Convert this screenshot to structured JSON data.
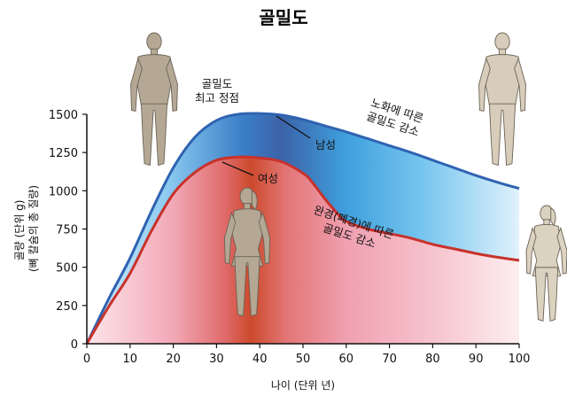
{
  "chart_data": {
    "type": "area",
    "title": "골밀도",
    "xlabel": "나이 (단위 년)",
    "ylabel": [
      "골량 (단위 g)",
      "(뼈 칼슘의 총 질량)"
    ],
    "xlim": [
      0,
      100
    ],
    "ylim": [
      0,
      1500
    ],
    "xticks": [
      0,
      10,
      20,
      30,
      40,
      50,
      60,
      70,
      80,
      90,
      100
    ],
    "yticks": [
      0,
      250,
      500,
      750,
      1000,
      1250,
      1500
    ],
    "grid": false,
    "series": [
      {
        "name": "남성",
        "color": "#2f63b2",
        "fill": "blue-gradient",
        "x": [
          0,
          5,
          10,
          15,
          20,
          25,
          30,
          35,
          40,
          45,
          50,
          55,
          60,
          65,
          70,
          75,
          80,
          85,
          90,
          95,
          100
        ],
        "y": [
          0,
          290,
          560,
          870,
          1150,
          1350,
          1460,
          1500,
          1505,
          1495,
          1465,
          1425,
          1385,
          1340,
          1295,
          1250,
          1200,
          1150,
          1100,
          1055,
          1015
        ]
      },
      {
        "name": "여성",
        "color": "#c8322b",
        "fill": "red-gradient",
        "x": [
          0,
          5,
          10,
          15,
          20,
          25,
          30,
          35,
          40,
          45,
          50,
          52,
          55,
          58,
          60,
          65,
          70,
          75,
          80,
          85,
          90,
          95,
          100
        ],
        "y": [
          0,
          240,
          460,
          740,
          980,
          1120,
          1200,
          1220,
          1215,
          1190,
          1115,
          1060,
          950,
          850,
          800,
          750,
          720,
          690,
          650,
          620,
          590,
          565,
          545
        ]
      }
    ],
    "annotations": [
      {
        "id": "peak",
        "lines": [
          "골밀도",
          "최고 정점"
        ]
      },
      {
        "id": "male-label",
        "text": "남성"
      },
      {
        "id": "female-label",
        "text": "여성"
      },
      {
        "id": "aging-decline",
        "lines": [
          "노화에 따른",
          "골밀도 감소"
        ]
      },
      {
        "id": "menopause-decline",
        "lines": [
          "완경(폐경)에 따른",
          "골밀도 감소"
        ]
      }
    ],
    "figures": [
      "young-man-figure",
      "old-man-figure",
      "young-woman-figure",
      "old-woman-figure"
    ]
  }
}
